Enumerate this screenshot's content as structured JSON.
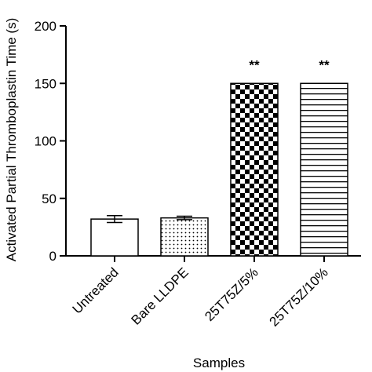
{
  "chart_data": {
    "type": "bar",
    "categories": [
      "Untreated",
      "Bare LLDPE",
      "25T75Z/5%",
      "25T75Z/10%"
    ],
    "values": [
      32,
      33,
      150,
      150
    ],
    "errors": [
      3,
      1.5,
      0,
      0
    ],
    "annotations": [
      "",
      "",
      "**",
      "**"
    ],
    "patterns": [
      "none",
      "dots",
      "checker",
      "hstripes"
    ],
    "xlabel": "Samples",
    "ylabel": "Activated Partial Thromboplastin Time (s)",
    "ylim": [
      0,
      200
    ],
    "yticks": [
      0,
      50,
      100,
      150,
      200
    ],
    "grid": false,
    "colors": {
      "bar_fill": "#ffffff",
      "bar_stroke": "#000000",
      "pattern": "#000000"
    }
  }
}
